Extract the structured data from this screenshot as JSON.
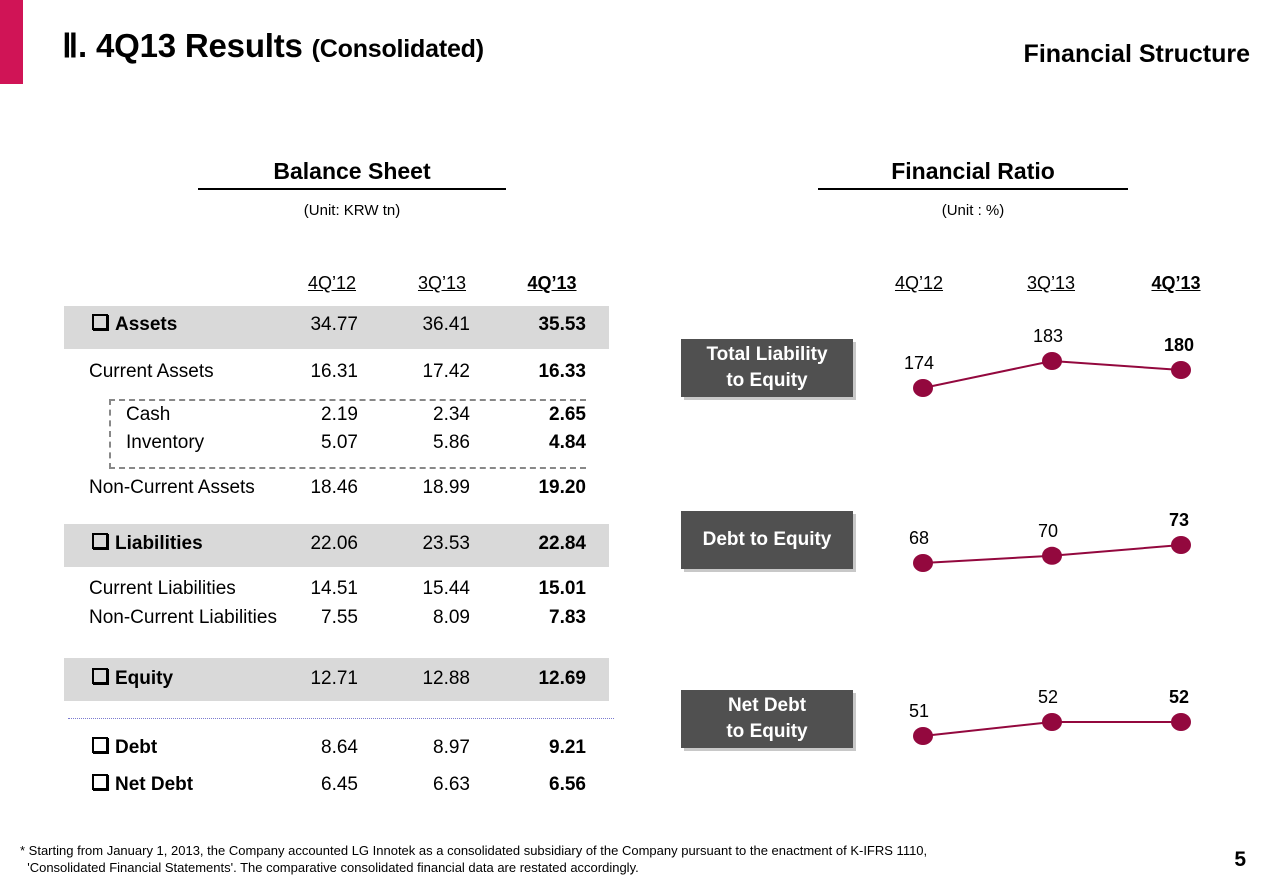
{
  "header": {
    "section_numeral": "Ⅱ.",
    "title": "4Q13 Results",
    "subtitle": "(Consolidated)",
    "section_name": "Financial Structure",
    "accent_color": "#d01456"
  },
  "balance_sheet": {
    "title": "Balance Sheet",
    "unit": "(Unit: KRW tn)",
    "columns": [
      "4Q’12",
      "3Q’13",
      "4Q’13"
    ],
    "rows": [
      {
        "label": "Assets",
        "type": "group",
        "values": [
          "34.77",
          "36.41",
          "35.53"
        ]
      },
      {
        "label": "Current Assets",
        "type": "item",
        "values": [
          "16.31",
          "17.42",
          "16.33"
        ]
      },
      {
        "label": "Cash",
        "type": "sub",
        "values": [
          "2.19",
          "2.34",
          "2.65"
        ]
      },
      {
        "label": "Inventory",
        "type": "sub",
        "values": [
          "5.07",
          "5.86",
          "4.84"
        ]
      },
      {
        "label": "Non-Current Assets",
        "type": "item",
        "values": [
          "18.46",
          "18.99",
          "19.20"
        ]
      },
      {
        "label": "Liabilities",
        "type": "group",
        "values": [
          "22.06",
          "23.53",
          "22.84"
        ]
      },
      {
        "label": "Current Liabilities",
        "type": "item",
        "values": [
          "14.51",
          "15.44",
          "15.01"
        ]
      },
      {
        "label": "Non-Current Liabilities",
        "type": "item",
        "values": [
          "7.55",
          "8.09",
          "7.83"
        ]
      },
      {
        "label": "Equity",
        "type": "group",
        "values": [
          "12.71",
          "12.88",
          "12.69"
        ]
      },
      {
        "label": "Debt",
        "type": "extra",
        "values": [
          "8.64",
          "8.97",
          "9.21"
        ]
      },
      {
        "label": "Net Debt",
        "type": "extra",
        "values": [
          "6.45",
          "6.63",
          "6.56"
        ]
      }
    ]
  },
  "financial_ratio": {
    "title": "Financial Ratio",
    "unit": "(Unit : %)",
    "columns": [
      "4Q’12",
      "3Q’13",
      "4Q’13"
    ],
    "series_color": "#93083e"
  },
  "chart_data": {
    "type": "line",
    "title": "Financial Ratio",
    "unit": "%",
    "categories": [
      "4Q’12",
      "3Q’13",
      "4Q’13"
    ],
    "series": [
      {
        "name": "Total Liability to Equity",
        "label_lines": [
          "Total Liability",
          "to Equity"
        ],
        "values": [
          174,
          183,
          180
        ]
      },
      {
        "name": "Debt to Equity",
        "label_lines": [
          "Debt to Equity"
        ],
        "values": [
          68,
          70,
          73
        ]
      },
      {
        "name": "Net Debt to Equity",
        "label_lines": [
          "Net Debt",
          "to Equity"
        ],
        "values": [
          51,
          52,
          52
        ]
      }
    ],
    "xlabel": "",
    "ylabel": "",
    "grid": false,
    "legend": "none"
  },
  "footnote": {
    "line1": "* Starting from January 1, 2013, the Company accounted LG Innotek as a consolidated subsidiary of the Company pursuant to the  enactment of K-IFRS 1110,",
    "line2": "  'Consolidated Financial Statements'. The comparative consolidated financial data are restated accordingly."
  },
  "page_number": "5"
}
